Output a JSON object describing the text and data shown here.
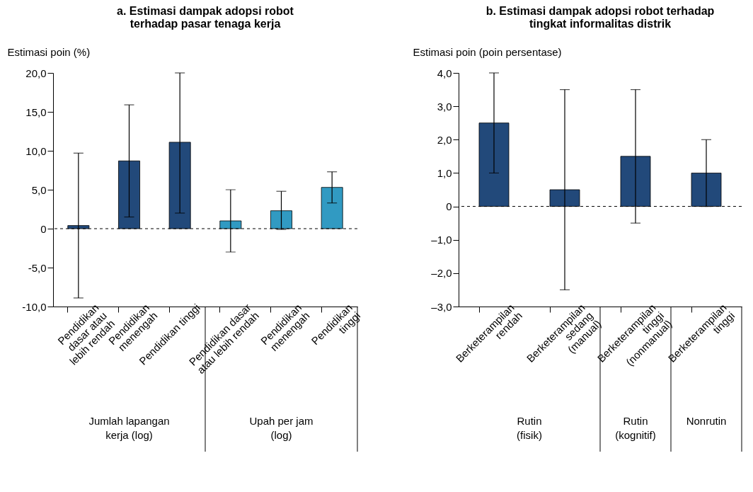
{
  "chart_data": [
    {
      "type": "bar",
      "title": "a. Estimasi dampak adopsi robot\nterhadap pasar tenaga kerja",
      "ylabel": "Estimasi poin (%)",
      "categories": [
        "Pendidikan\ndasar atau\nlebih rendah",
        "Pendidikan\nmenengah",
        "Pendidikan tinggi",
        "Pendidikan dasar\natau lebih rendah",
        "Pendidikan\nmenengah",
        "Pendidikan\ntinggi"
      ],
      "values": [
        0.4,
        8.7,
        11.1,
        1.0,
        2.3,
        5.3
      ],
      "colors": [
        "#22497a",
        "#22497a",
        "#22497a",
        "#319ac2",
        "#319ac2",
        "#319ac2"
      ],
      "errors": [
        [
          -8.9,
          9.7
        ],
        [
          1.5,
          15.9
        ],
        [
          2.0,
          20.0
        ],
        [
          -3.0,
          5.0
        ],
        [
          -0.1,
          4.8
        ],
        [
          3.3,
          7.3
        ]
      ],
      "ylim": [
        -10,
        20
      ],
      "yticks": [
        {
          "value": -10,
          "label": "-10,0"
        },
        {
          "value": -5,
          "label": "-5,0"
        },
        0,
        {
          "value": 5,
          "label": "5,0"
        },
        {
          "value": 10,
          "label": "10,0"
        },
        {
          "value": 15,
          "label": "15,0"
        },
        {
          "value": 20,
          "label": "20,0"
        }
      ],
      "ref_lines": [
        {
          "axis": "y",
          "value": 0,
          "line_style": "dashed"
        }
      ],
      "annotations": [
        "Jumlah lapangan\nkerja (log)",
        "Upah per jam\n(log)"
      ],
      "grid": false
    },
    {
      "type": "bar",
      "title": "b. Estimasi dampak adopsi robot terhadap\ntingkat informalitas distrik",
      "ylabel": "Estimasi poin (poin persentase)",
      "categories": [
        "Berketerampilan\nrendah",
        "Berketerampilan\nsedang\n(manual)",
        "Berketerampilan\ntinggi\n(nonmanual)",
        "Berketerampilan\ntinggi"
      ],
      "values": [
        2.5,
        0.5,
        1.5,
        1.0
      ],
      "colors": [
        "#22497a",
        "#22497a",
        "#22497a",
        "#22497a"
      ],
      "errors": [
        [
          1.0,
          4.0
        ],
        [
          -2.5,
          3.5
        ],
        [
          -0.5,
          3.5
        ],
        [
          0.0,
          2.0
        ]
      ],
      "ylim": [
        -3,
        4
      ],
      "yticks": [
        {
          "value": -3,
          "label": "–3,0"
        },
        {
          "value": -2,
          "label": "–2,0"
        },
        {
          "value": -1,
          "label": "–1,0"
        },
        0,
        {
          "value": 1,
          "label": "1,0"
        },
        {
          "value": 2,
          "label": "2,0"
        },
        {
          "value": 3,
          "label": "3,0"
        },
        {
          "value": 4,
          "label": "4,0"
        }
      ],
      "ref_lines": [
        {
          "axis": "y",
          "value": 0,
          "line_style": "dashed"
        }
      ],
      "annotations": [
        "Rutin\n(fisik)",
        "Rutin\n(kognitif)",
        "Nonrutin"
      ],
      "grid": false
    }
  ]
}
